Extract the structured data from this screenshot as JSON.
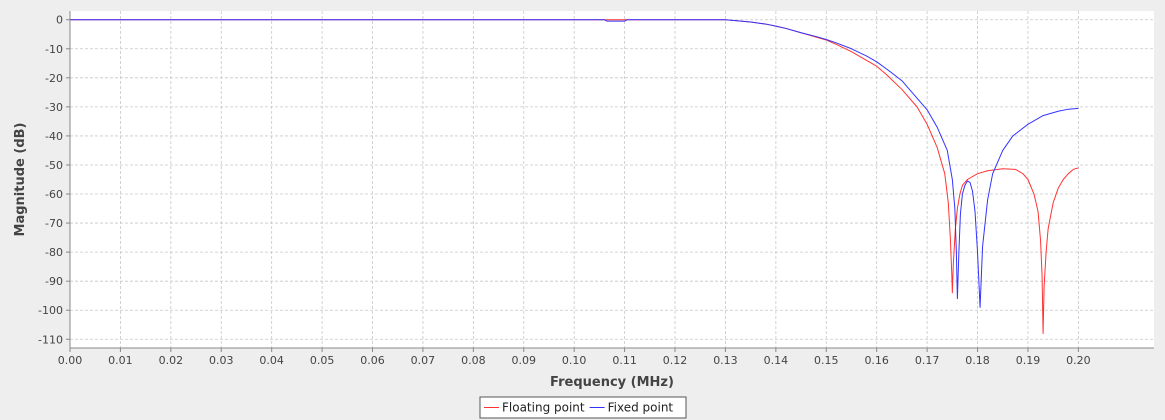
{
  "chart_data": {
    "type": "line",
    "xlabel": "Frequency (MHz)",
    "ylabel": "Magnitude (dB)",
    "xlim": [
      0,
      0.215
    ],
    "ylim": [
      -113,
      3
    ],
    "x_ticks": [
      "0.00",
      "0.01",
      "0.02",
      "0.03",
      "0.04",
      "0.05",
      "0.06",
      "0.07",
      "0.08",
      "0.09",
      "0.10",
      "0.11",
      "0.12",
      "0.13",
      "0.14",
      "0.15",
      "0.16",
      "0.17",
      "0.18",
      "0.19",
      "0.20"
    ],
    "y_ticks": [
      "0",
      "-10",
      "-20",
      "-30",
      "-40",
      "-50",
      "-60",
      "-70",
      "-80",
      "-90",
      "-100",
      "-110"
    ],
    "grid": true,
    "legend_position": "bottom-center",
    "series": [
      {
        "name": "Floating point",
        "color": "#ff3333",
        "points": [
          [
            0,
            0
          ],
          [
            0.1,
            0
          ],
          [
            0.12,
            0
          ],
          [
            0.13,
            0
          ],
          [
            0.132,
            -0.3
          ],
          [
            0.135,
            -0.8
          ],
          [
            0.138,
            -1.5
          ],
          [
            0.14,
            -2.2
          ],
          [
            0.142,
            -3
          ],
          [
            0.145,
            -4.5
          ],
          [
            0.148,
            -6
          ],
          [
            0.15,
            -7
          ],
          [
            0.152,
            -8.5
          ],
          [
            0.155,
            -11
          ],
          [
            0.158,
            -14
          ],
          [
            0.16,
            -16
          ],
          [
            0.162,
            -19
          ],
          [
            0.165,
            -24
          ],
          [
            0.168,
            -30
          ],
          [
            0.17,
            -36
          ],
          [
            0.172,
            -44
          ],
          [
            0.1735,
            -53
          ],
          [
            0.1742,
            -63
          ],
          [
            0.1746,
            -75
          ],
          [
            0.1749,
            -88
          ],
          [
            0.175,
            -94
          ],
          [
            0.1752,
            -84
          ],
          [
            0.1756,
            -72
          ],
          [
            0.176,
            -65
          ],
          [
            0.1765,
            -60
          ],
          [
            0.177,
            -57
          ],
          [
            0.178,
            -55
          ],
          [
            0.18,
            -53
          ],
          [
            0.182,
            -52
          ],
          [
            0.185,
            -51.3
          ],
          [
            0.1875,
            -51.5
          ],
          [
            0.189,
            -53
          ],
          [
            0.19,
            -55
          ],
          [
            0.1912,
            -60
          ],
          [
            0.192,
            -66
          ],
          [
            0.1925,
            -76
          ],
          [
            0.1928,
            -88
          ],
          [
            0.193,
            -108
          ],
          [
            0.1932,
            -92
          ],
          [
            0.1936,
            -80
          ],
          [
            0.194,
            -72
          ],
          [
            0.195,
            -63
          ],
          [
            0.196,
            -58
          ],
          [
            0.197,
            -55
          ],
          [
            0.198,
            -53
          ],
          [
            0.199,
            -51.5
          ],
          [
            0.2,
            -51
          ]
        ]
      },
      {
        "name": "Fixed point",
        "color": "#3333ff",
        "points": [
          [
            0,
            0
          ],
          [
            0.106,
            0
          ],
          [
            0.1065,
            -0.5
          ],
          [
            0.11,
            -0.5
          ],
          [
            0.1105,
            0
          ],
          [
            0.12,
            0
          ],
          [
            0.13,
            0
          ],
          [
            0.132,
            -0.3
          ],
          [
            0.135,
            -0.8
          ],
          [
            0.138,
            -1.5
          ],
          [
            0.14,
            -2.2
          ],
          [
            0.142,
            -3
          ],
          [
            0.145,
            -4.5
          ],
          [
            0.148,
            -5.8
          ],
          [
            0.15,
            -6.8
          ],
          [
            0.152,
            -8
          ],
          [
            0.155,
            -10
          ],
          [
            0.158,
            -12.5
          ],
          [
            0.16,
            -14.5
          ],
          [
            0.162,
            -17
          ],
          [
            0.165,
            -21
          ],
          [
            0.168,
            -27
          ],
          [
            0.17,
            -31
          ],
          [
            0.172,
            -37
          ],
          [
            0.174,
            -45
          ],
          [
            0.175,
            -55
          ],
          [
            0.1755,
            -65
          ],
          [
            0.1758,
            -80
          ],
          [
            0.176,
            -96
          ],
          [
            0.1763,
            -80
          ],
          [
            0.1766,
            -67
          ],
          [
            0.177,
            -60
          ],
          [
            0.1775,
            -57
          ],
          [
            0.178,
            -55.5
          ],
          [
            0.1785,
            -56
          ],
          [
            0.179,
            -59
          ],
          [
            0.1795,
            -66
          ],
          [
            0.18,
            -80
          ],
          [
            0.1805,
            -99
          ],
          [
            0.181,
            -78
          ],
          [
            0.182,
            -62
          ],
          [
            0.183,
            -53
          ],
          [
            0.185,
            -45
          ],
          [
            0.187,
            -40
          ],
          [
            0.19,
            -36
          ],
          [
            0.193,
            -33
          ],
          [
            0.196,
            -31.5
          ],
          [
            0.198,
            -30.8
          ],
          [
            0.2,
            -30.5
          ]
        ]
      }
    ]
  }
}
